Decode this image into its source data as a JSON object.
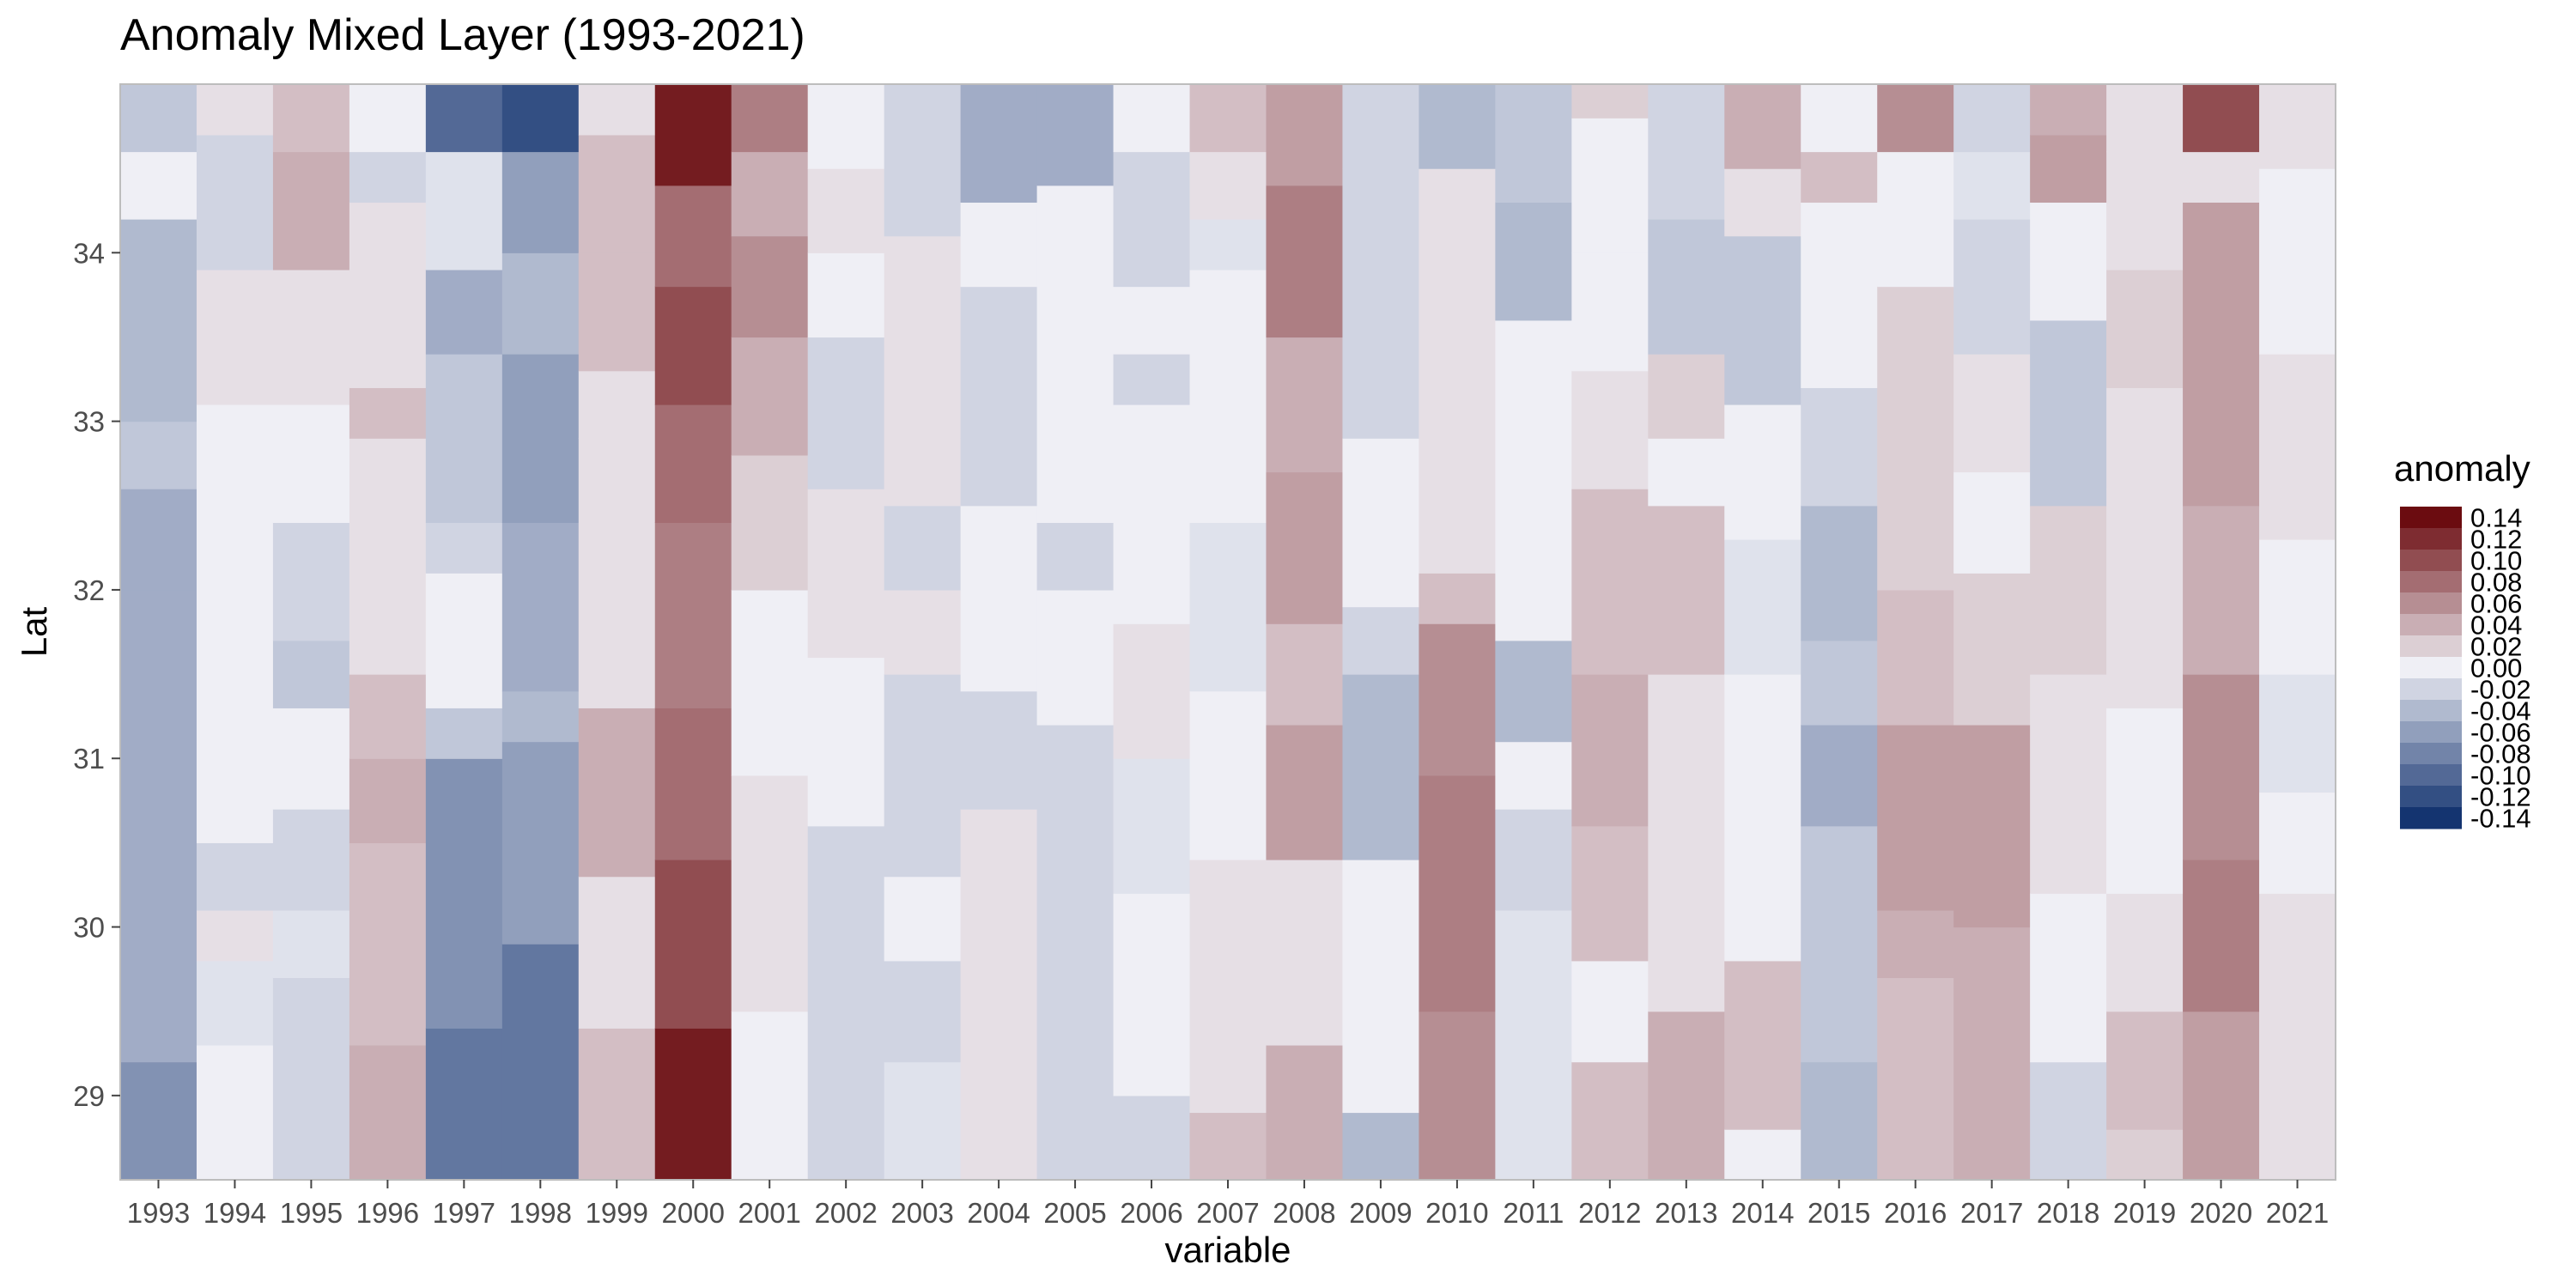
{
  "chart_data": {
    "type": "heatmap",
    "title": "Anomaly Mixed Layer (1993-2021)",
    "xlabel": "variable",
    "ylabel": "Lat",
    "legend": {
      "title": "anomaly",
      "placement": "right",
      "breaks": [
        0.14,
        0.12,
        0.1,
        0.08,
        0.06,
        0.04,
        0.02,
        0.0,
        -0.02,
        -0.04,
        -0.06,
        -0.08,
        -0.1,
        -0.12,
        -0.14
      ],
      "labels": [
        "0.14",
        "0.12",
        "0.10",
        "0.08",
        "0.06",
        "0.04",
        "0.02",
        "0.00",
        "-0.02",
        "-0.04",
        "-0.06",
        "-0.08",
        "-0.10",
        "-0.12",
        "-0.14"
      ]
    },
    "colors": {
      "high": "#6b0c10",
      "mid": "#efeff5",
      "low": "#143470",
      "panel_border": "#bdbdbd"
    },
    "categories": [
      "1993",
      "1994",
      "1995",
      "1996",
      "1997",
      "1998",
      "1999",
      "2000",
      "2001",
      "2002",
      "2003",
      "2004",
      "2005",
      "2006",
      "2007",
      "2008",
      "2009",
      "2010",
      "2011",
      "2012",
      "2013",
      "2014",
      "2015",
      "2016",
      "2017",
      "2018",
      "2019",
      "2020",
      "2021"
    ],
    "y_ticks": [
      "29",
      "30",
      "31",
      "32",
      "33",
      "34"
    ],
    "ylim": [
      28.5,
      35.0
    ],
    "grid": false,
    "columns": [
      [
        [
          28.5,
          29.2,
          -0.07
        ],
        [
          29.2,
          32.0,
          -0.05
        ],
        [
          32.0,
          32.6,
          -0.05
        ],
        [
          32.6,
          33.0,
          -0.03
        ],
        [
          33.0,
          34.2,
          -0.04
        ],
        [
          34.2,
          34.6,
          0.0
        ],
        [
          34.6,
          35.0,
          -0.03
        ]
      ],
      [
        [
          28.5,
          29.3,
          0.0
        ],
        [
          29.3,
          29.8,
          -0.01
        ],
        [
          29.8,
          30.1,
          0.01
        ],
        [
          30.1,
          30.5,
          -0.02
        ],
        [
          30.5,
          31.1,
          0.0
        ],
        [
          31.1,
          33.1,
          0.0
        ],
        [
          33.1,
          33.9,
          0.01
        ],
        [
          33.9,
          34.3,
          -0.02
        ],
        [
          34.3,
          34.7,
          -0.02
        ],
        [
          34.7,
          35.0,
          0.01
        ]
      ],
      [
        [
          28.5,
          29.7,
          -0.02
        ],
        [
          29.7,
          30.1,
          -0.01
        ],
        [
          30.1,
          30.7,
          -0.02
        ],
        [
          30.7,
          31.3,
          0.0
        ],
        [
          31.3,
          31.7,
          -0.03
        ],
        [
          31.7,
          32.4,
          -0.02
        ],
        [
          32.4,
          33.1,
          0.0
        ],
        [
          33.1,
          33.9,
          0.01
        ],
        [
          33.9,
          34.3,
          0.04
        ],
        [
          34.3,
          34.6,
          0.04
        ],
        [
          34.6,
          35.0,
          0.03
        ]
      ],
      [
        [
          28.5,
          29.3,
          0.04
        ],
        [
          29.3,
          30.5,
          0.03
        ],
        [
          30.5,
          31.0,
          0.04
        ],
        [
          31.0,
          31.5,
          0.03
        ],
        [
          31.5,
          32.9,
          0.01
        ],
        [
          32.9,
          33.2,
          0.03
        ],
        [
          33.2,
          34.3,
          0.01
        ],
        [
          34.3,
          34.6,
          -0.02
        ],
        [
          34.6,
          35.0,
          0.0
        ]
      ],
      [
        [
          28.5,
          29.4,
          -0.09
        ],
        [
          29.4,
          31.0,
          -0.07
        ],
        [
          31.0,
          31.3,
          -0.03
        ],
        [
          31.3,
          32.1,
          0.0
        ],
        [
          32.1,
          32.4,
          -0.02
        ],
        [
          32.4,
          33.4,
          -0.03
        ],
        [
          33.4,
          33.9,
          -0.05
        ],
        [
          33.9,
          34.6,
          -0.01
        ],
        [
          34.6,
          35.0,
          -0.1
        ]
      ],
      [
        [
          28.5,
          29.9,
          -0.09
        ],
        [
          29.9,
          31.1,
          -0.06
        ],
        [
          31.1,
          31.4,
          -0.04
        ],
        [
          31.4,
          32.4,
          -0.05
        ],
        [
          32.4,
          33.4,
          -0.06
        ],
        [
          33.4,
          34.0,
          -0.04
        ],
        [
          34.0,
          34.6,
          -0.06
        ],
        [
          34.6,
          35.0,
          -0.12
        ]
      ],
      [
        [
          28.5,
          29.4,
          0.03
        ],
        [
          29.4,
          30.3,
          0.01
        ],
        [
          30.3,
          31.3,
          0.04
        ],
        [
          31.3,
          32.9,
          0.01
        ],
        [
          32.9,
          33.3,
          0.01
        ],
        [
          33.3,
          34.0,
          0.03
        ],
        [
          34.0,
          34.7,
          0.03
        ],
        [
          34.7,
          35.0,
          0.01
        ]
      ],
      [
        [
          28.5,
          29.4,
          0.13
        ],
        [
          29.4,
          30.4,
          0.1
        ],
        [
          30.4,
          31.3,
          0.08
        ],
        [
          31.3,
          32.4,
          0.07
        ],
        [
          32.4,
          33.1,
          0.08
        ],
        [
          33.1,
          33.8,
          0.1
        ],
        [
          33.8,
          34.4,
          0.08
        ],
        [
          34.4,
          35.0,
          0.13
        ]
      ],
      [
        [
          28.5,
          29.5,
          0.0
        ],
        [
          29.5,
          30.9,
          0.01
        ],
        [
          30.9,
          32.0,
          0.0
        ],
        [
          32.0,
          32.8,
          0.02
        ],
        [
          32.8,
          33.5,
          0.04
        ],
        [
          33.5,
          34.1,
          0.06
        ],
        [
          34.1,
          34.6,
          0.04
        ],
        [
          34.6,
          35.0,
          0.07
        ]
      ],
      [
        [
          28.5,
          29.5,
          -0.02
        ],
        [
          29.5,
          30.6,
          -0.02
        ],
        [
          30.6,
          31.6,
          0.0
        ],
        [
          31.6,
          32.6,
          0.01
        ],
        [
          32.6,
          33.5,
          -0.02
        ],
        [
          33.5,
          34.0,
          0.0
        ],
        [
          34.0,
          34.5,
          0.01
        ],
        [
          34.5,
          35.0,
          0.0
        ]
      ],
      [
        [
          28.5,
          29.2,
          -0.01
        ],
        [
          29.2,
          29.8,
          -0.02
        ],
        [
          29.8,
          30.3,
          0.0
        ],
        [
          30.3,
          31.5,
          -0.02
        ],
        [
          31.5,
          32.0,
          0.01
        ],
        [
          32.0,
          32.5,
          -0.02
        ],
        [
          32.5,
          34.1,
          0.01
        ],
        [
          34.1,
          35.0,
          -0.02
        ]
      ],
      [
        [
          28.5,
          29.5,
          0.01
        ],
        [
          29.5,
          30.7,
          0.01
        ],
        [
          30.7,
          31.4,
          -0.02
        ],
        [
          31.4,
          32.5,
          0.0
        ],
        [
          32.5,
          32.9,
          -0.02
        ],
        [
          32.9,
          33.8,
          -0.02
        ],
        [
          33.8,
          34.3,
          0.0
        ],
        [
          34.3,
          35.0,
          -0.05
        ]
      ],
      [
        [
          28.5,
          31.2,
          -0.02
        ],
        [
          31.2,
          32.0,
          0.0
        ],
        [
          32.0,
          32.4,
          -0.02
        ],
        [
          32.4,
          34.4,
          0.0
        ],
        [
          34.4,
          35.0,
          -0.05
        ]
      ],
      [
        [
          28.5,
          29.0,
          -0.02
        ],
        [
          29.0,
          30.2,
          0.0
        ],
        [
          30.2,
          31.0,
          -0.01
        ],
        [
          31.0,
          31.8,
          0.01
        ],
        [
          31.8,
          33.1,
          0.0
        ],
        [
          33.1,
          33.4,
          -0.02
        ],
        [
          33.4,
          33.8,
          0.0
        ],
        [
          33.8,
          34.0,
          -0.02
        ],
        [
          34.0,
          34.6,
          -0.02
        ],
        [
          34.6,
          35.0,
          0.0
        ]
      ],
      [
        [
          28.5,
          28.9,
          0.03
        ],
        [
          28.9,
          30.4,
          0.01
        ],
        [
          30.4,
          31.4,
          0.0
        ],
        [
          31.4,
          32.4,
          -0.01
        ],
        [
          32.4,
          33.9,
          0.0
        ],
        [
          33.9,
          34.2,
          -0.01
        ],
        [
          34.2,
          34.6,
          0.01
        ],
        [
          34.6,
          35.0,
          0.03
        ]
      ],
      [
        [
          28.5,
          29.3,
          0.04
        ],
        [
          29.3,
          30.4,
          0.01
        ],
        [
          30.4,
          31.2,
          0.05
        ],
        [
          31.2,
          31.8,
          0.03
        ],
        [
          31.8,
          32.7,
          0.05
        ],
        [
          32.7,
          33.5,
          0.04
        ],
        [
          33.5,
          34.4,
          0.07
        ],
        [
          34.4,
          35.0,
          0.05
        ]
      ],
      [
        [
          28.5,
          28.9,
          -0.04
        ],
        [
          28.9,
          30.4,
          0.0
        ],
        [
          30.4,
          31.5,
          -0.04
        ],
        [
          31.5,
          31.9,
          -0.02
        ],
        [
          31.9,
          32.9,
          0.0
        ],
        [
          32.9,
          34.5,
          -0.02
        ],
        [
          34.5,
          35.0,
          -0.02
        ]
      ],
      [
        [
          28.5,
          29.5,
          0.06
        ],
        [
          29.5,
          30.9,
          0.07
        ],
        [
          30.9,
          31.8,
          0.06
        ],
        [
          31.8,
          32.1,
          0.03
        ],
        [
          32.1,
          34.5,
          0.01
        ],
        [
          34.5,
          35.0,
          -0.04
        ]
      ],
      [
        [
          28.5,
          30.1,
          -0.01
        ],
        [
          30.1,
          30.7,
          -0.02
        ],
        [
          30.7,
          31.1,
          0.0
        ],
        [
          31.1,
          31.7,
          -0.04
        ],
        [
          31.7,
          33.6,
          0.0
        ],
        [
          33.6,
          34.3,
          -0.04
        ],
        [
          34.3,
          35.0,
          -0.03
        ]
      ],
      [
        [
          28.5,
          29.2,
          0.03
        ],
        [
          29.2,
          29.8,
          0.0
        ],
        [
          29.8,
          30.6,
          0.03
        ],
        [
          30.6,
          31.5,
          0.04
        ],
        [
          31.5,
          32.6,
          0.03
        ],
        [
          32.6,
          33.3,
          0.01
        ],
        [
          33.3,
          34.0,
          0.0
        ],
        [
          34.0,
          34.8,
          0.0
        ],
        [
          34.8,
          35.0,
          0.02
        ]
      ],
      [
        [
          28.5,
          29.5,
          0.04
        ],
        [
          29.5,
          31.5,
          0.01
        ],
        [
          31.5,
          31.8,
          0.03
        ],
        [
          31.8,
          32.5,
          0.03
        ],
        [
          32.5,
          32.9,
          0.0
        ],
        [
          32.9,
          33.4,
          0.02
        ],
        [
          33.4,
          34.2,
          -0.03
        ],
        [
          34.2,
          35.0,
          -0.02
        ]
      ],
      [
        [
          28.5,
          28.8,
          0.0
        ],
        [
          28.8,
          29.8,
          0.03
        ],
        [
          29.8,
          31.5,
          0.0
        ],
        [
          31.5,
          32.3,
          -0.01
        ],
        [
          32.3,
          33.1,
          0.0
        ],
        [
          33.1,
          34.1,
          -0.03
        ],
        [
          34.1,
          34.5,
          0.01
        ],
        [
          34.5,
          35.0,
          0.04
        ]
      ],
      [
        [
          28.5,
          29.2,
          -0.04
        ],
        [
          29.2,
          30.6,
          -0.03
        ],
        [
          30.6,
          31.2,
          -0.05
        ],
        [
          31.2,
          31.7,
          -0.03
        ],
        [
          31.7,
          32.5,
          -0.04
        ],
        [
          32.5,
          33.2,
          -0.02
        ],
        [
          33.2,
          34.3,
          0.0
        ],
        [
          34.3,
          34.6,
          0.03
        ],
        [
          34.6,
          35.0,
          0.0
        ]
      ],
      [
        [
          28.5,
          29.7,
          0.03
        ],
        [
          29.7,
          30.1,
          0.04
        ],
        [
          30.1,
          31.2,
          0.05
        ],
        [
          31.2,
          32.0,
          0.03
        ],
        [
          32.0,
          32.8,
          0.02
        ],
        [
          32.8,
          33.8,
          0.02
        ],
        [
          33.8,
          34.6,
          0.0
        ],
        [
          34.6,
          35.0,
          0.06
        ]
      ],
      [
        [
          28.5,
          29.6,
          0.04
        ],
        [
          29.6,
          30.0,
          0.04
        ],
        [
          30.0,
          31.2,
          0.05
        ],
        [
          31.2,
          32.1,
          0.02
        ],
        [
          32.1,
          32.7,
          0.0
        ],
        [
          32.7,
          33.4,
          0.01
        ],
        [
          33.4,
          34.2,
          -0.02
        ],
        [
          34.2,
          34.6,
          -0.01
        ],
        [
          34.6,
          35.0,
          -0.02
        ]
      ],
      [
        [
          28.5,
          29.2,
          -0.02
        ],
        [
          29.2,
          30.2,
          0.0
        ],
        [
          30.2,
          31.5,
          0.01
        ],
        [
          31.5,
          32.5,
          0.02
        ],
        [
          32.5,
          33.6,
          -0.03
        ],
        [
          33.6,
          34.3,
          0.0
        ],
        [
          34.3,
          34.7,
          0.05
        ],
        [
          34.7,
          35.0,
          0.04
        ]
      ],
      [
        [
          28.5,
          28.8,
          0.02
        ],
        [
          28.8,
          29.5,
          0.03
        ],
        [
          29.5,
          30.2,
          0.01
        ],
        [
          30.2,
          31.3,
          0.0
        ],
        [
          31.3,
          32.6,
          0.01
        ],
        [
          32.6,
          33.2,
          0.01
        ],
        [
          33.2,
          33.9,
          0.02
        ],
        [
          33.9,
          34.6,
          0.01
        ],
        [
          34.6,
          35.0,
          0.01
        ]
      ],
      [
        [
          28.5,
          29.5,
          0.05
        ],
        [
          29.5,
          30.4,
          0.07
        ],
        [
          30.4,
          31.5,
          0.06
        ],
        [
          31.5,
          32.5,
          0.04
        ],
        [
          32.5,
          33.5,
          0.05
        ],
        [
          33.5,
          34.3,
          0.05
        ],
        [
          34.3,
          34.6,
          0.01
        ],
        [
          34.6,
          35.0,
          0.1
        ]
      ],
      [
        [
          28.5,
          29.1,
          0.01
        ],
        [
          29.1,
          30.2,
          0.01
        ],
        [
          30.2,
          30.8,
          0.0
        ],
        [
          30.8,
          31.5,
          -0.01
        ],
        [
          31.5,
          32.3,
          0.0
        ],
        [
          32.3,
          33.4,
          0.01
        ],
        [
          33.4,
          34.5,
          0.0
        ],
        [
          34.5,
          35.0,
          0.01
        ]
      ]
    ]
  }
}
